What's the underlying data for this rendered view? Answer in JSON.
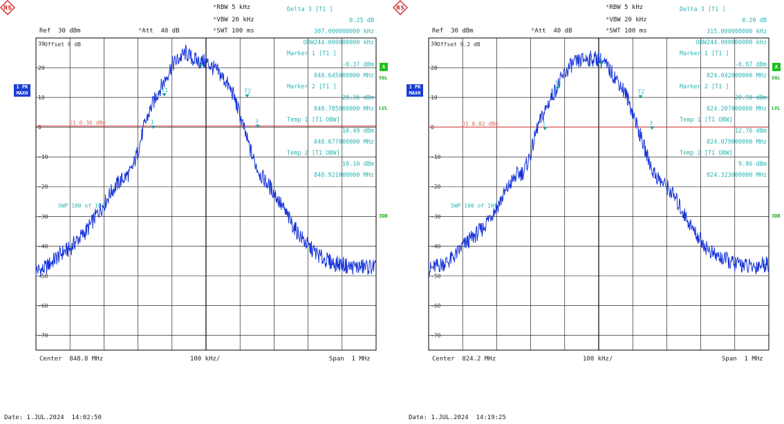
{
  "chart_data": [
    {
      "type": "line",
      "ref_label": "Ref  30 dBm",
      "att_label": "Att  40 dB",
      "rbw_label": "RBW 5 kHz",
      "vbw_label": "VBW 20 kHz",
      "swt_label": "SWT 100 ms",
      "offset_label": "Offset  9 dB",
      "marker_lines": [
        "Delta 3 [T1 ]",
        "0.25 dB",
        "307.000000000 kHz",
        "OBW244.000000000 kHz",
        "Marker 1 [T1 ]",
        "-0.37 dBm",
        "848.645000000 MHz",
        "Marker 2 [T1 ]",
        "20.36 dBm",
        "848.785000000 MHz",
        "Temp 1 [T1 OBW]",
        "10.49 dBm",
        "848.677000000 MHz",
        "Temp 2 [T1 OBW]",
        "10.10 dBm",
        "848.921000000 MHz"
      ],
      "d1_label": "D1 0.36 dBm",
      "d1_value": 0.36,
      "swp_label": "SWP   100 of  100",
      "center_label": "Center  848.8 MHz",
      "div_label": "100 kHz/",
      "span_label": "Span  1 MHz",
      "date_label": "Date: 1.JUL.2024  14:02:50",
      "ylim": [
        -75,
        30
      ],
      "xlim": [
        848.3,
        849.3
      ],
      "y_ticks": [
        "30",
        "20",
        "10",
        "0",
        "-10",
        "-20",
        "-30",
        "-40",
        "-50",
        "-60",
        "-70"
      ],
      "y_tick_values": [
        30,
        20,
        10,
        0,
        -10,
        -20,
        -30,
        -40,
        -50,
        -60,
        -70
      ],
      "trace_x": [
        848.3,
        848.32,
        848.34,
        848.36,
        848.38,
        848.4,
        848.42,
        848.44,
        848.46,
        848.48,
        848.5,
        848.52,
        848.54,
        848.56,
        848.58,
        848.6,
        848.62,
        848.64,
        848.66,
        848.68,
        848.7,
        848.72,
        848.74,
        848.76,
        848.78,
        848.8,
        848.82,
        848.84,
        848.86,
        848.88,
        848.9,
        848.92,
        848.94,
        848.96,
        848.98,
        849.0,
        849.02,
        849.04,
        849.06,
        849.08,
        849.1,
        849.12,
        849.14,
        849.16,
        849.18,
        849.2,
        849.22,
        849.24,
        849.26,
        849.28,
        849.3
      ],
      "trace_y": [
        -48,
        -48,
        -46,
        -44,
        -42,
        -41,
        -38,
        -36,
        -33,
        -29,
        -26,
        -22,
        -19,
        -17,
        -15,
        -8,
        1,
        7,
        12,
        16,
        21,
        23,
        25,
        23,
        22,
        22,
        20,
        18,
        15,
        11,
        4,
        -4,
        -11,
        -16,
        -19,
        -22,
        -26,
        -30,
        -34,
        -37,
        -40,
        -42,
        -44,
        -45,
        -46,
        -46,
        -47,
        -47,
        -47,
        -47,
        -47
      ],
      "markers": [
        {
          "label": "1",
          "x": 848.645,
          "y": -0.37
        },
        {
          "label": "2",
          "x": 848.785,
          "y": 20.36
        },
        {
          "label": "T1",
          "x": 848.677,
          "y": 10.49
        },
        {
          "label": "T2",
          "x": 848.921,
          "y": 10.1
        },
        {
          "label": "3",
          "x": 848.952,
          "y": -0.12
        }
      ]
    },
    {
      "type": "line",
      "ref_label": "Ref  30 dBm",
      "att_label": "Att  40 dB",
      "rbw_label": "RBW 5 kHz",
      "vbw_label": "VBW 20 kHz",
      "swt_label": "SWT 100 ms",
      "offset_label": "Offset  9.2 dB",
      "marker_lines": [
        "Delta 3 [T1 ]",
        "0.20 dB",
        "315.000000000 kHz",
        "OBW244.000000000 kHz",
        "Marker 1 [T1 ]",
        "-0.87 dBm",
        "824.042000000 MHz",
        "Marker 2 [T1 ]",
        "20.98 dBm",
        "824.207000000 MHz",
        "Temp 1 [T1 OBW]",
        "12.76 dBm",
        "824.079000000 MHz",
        "Temp 2 [T1 OBW]",
        "9.86 dBm",
        "824.323000000 MHz"
      ],
      "d1_label": "D1  0.02 dBm",
      "d1_value": 0.02,
      "swp_label": "SWP   100 of  100",
      "center_label": "Center  824.2 MHz",
      "div_label": "100 kHz/",
      "span_label": "Span  1 MHz",
      "date_label": "Date: 1.JUL.2024  14:19:25",
      "ylim": [
        -75,
        30
      ],
      "xlim": [
        823.7,
        824.7
      ],
      "y_ticks": [
        "30",
        "20",
        "10",
        "0",
        "-10",
        "-20",
        "-30",
        "-40",
        "-50",
        "-60",
        "-70"
      ],
      "y_tick_values": [
        30,
        20,
        10,
        0,
        -10,
        -20,
        -30,
        -40,
        -50,
        -60,
        -70
      ],
      "trace_x": [
        823.7,
        823.72,
        823.74,
        823.76,
        823.78,
        823.8,
        823.82,
        823.84,
        823.86,
        823.88,
        823.9,
        823.92,
        823.94,
        823.96,
        823.98,
        824.0,
        824.02,
        824.04,
        824.06,
        824.08,
        824.1,
        824.12,
        824.14,
        824.16,
        824.18,
        824.2,
        824.22,
        824.24,
        824.26,
        824.28,
        824.3,
        824.32,
        824.34,
        824.36,
        824.38,
        824.4,
        824.42,
        824.44,
        824.46,
        824.48,
        824.5,
        824.52,
        824.54,
        824.56,
        824.58,
        824.6,
        824.62,
        824.64,
        824.66,
        824.68,
        824.7
      ],
      "trace_y": [
        -48,
        -47,
        -46,
        -45,
        -43,
        -40,
        -38,
        -36,
        -34,
        -30,
        -27,
        -23,
        -19,
        -16,
        -15,
        -9,
        0,
        5,
        10,
        14,
        18,
        21,
        22,
        23,
        23,
        23,
        21,
        18,
        15,
        11,
        5,
        -2,
        -9,
        -15,
        -18,
        -20,
        -23,
        -27,
        -31,
        -35,
        -38,
        -41,
        -43,
        -44,
        -45,
        -46,
        -46,
        -47,
        -47,
        -46,
        -46
      ],
      "markers": [
        {
          "label": "1",
          "x": 824.042,
          "y": -0.87
        },
        {
          "label": "2",
          "x": 824.207,
          "y": 20.98
        },
        {
          "label": "T1",
          "x": 824.079,
          "y": 12.76
        },
        {
          "label": "T2",
          "x": 824.323,
          "y": 9.86
        },
        {
          "label": "3",
          "x": 824.357,
          "y": -0.67
        }
      ]
    }
  ],
  "side_labels": {
    "pk": "1 PK",
    "maxh": "MAXH",
    "a": "A",
    "sgl": "SGL",
    "lvl": "LVL",
    "db3": "3DB"
  },
  "colors": {
    "trace": "#1432d8",
    "grid": "#000000",
    "marker_text": "#2bb3b3",
    "d1_line": "#cc2222",
    "tag_green": "#1ec21e",
    "tag_blue": "#1a3dd6"
  }
}
